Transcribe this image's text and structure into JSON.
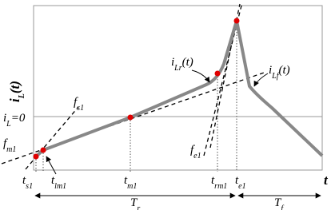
{
  "axis": {
    "y_label": {
      "base": "i",
      "sub": "L",
      "suffix": "(t)"
    },
    "x_label": "t",
    "zero_label": {
      "base": "i",
      "sub": "L",
      "suffix": "=0"
    }
  },
  "lines": [
    {
      "base": "f",
      "sub": "s1"
    },
    {
      "base": "f",
      "sub": "m1"
    },
    {
      "base": "f",
      "sub": "e1"
    },
    {
      "base": "i",
      "sub": "Lr",
      "suffix": "(t)"
    },
    {
      "base": "i",
      "sub": "Lf",
      "suffix": "(t)"
    }
  ],
  "times": [
    {
      "base": "t",
      "sub": "s1"
    },
    {
      "base": "t",
      "sub": "lm1"
    },
    {
      "base": "t",
      "sub": "m1"
    },
    {
      "base": "t",
      "sub": "rm1"
    },
    {
      "base": "t",
      "sub": "e1"
    }
  ],
  "intervals": [
    {
      "base": "T",
      "sub": "r"
    },
    {
      "base": "T",
      "sub": "f"
    }
  ]
}
